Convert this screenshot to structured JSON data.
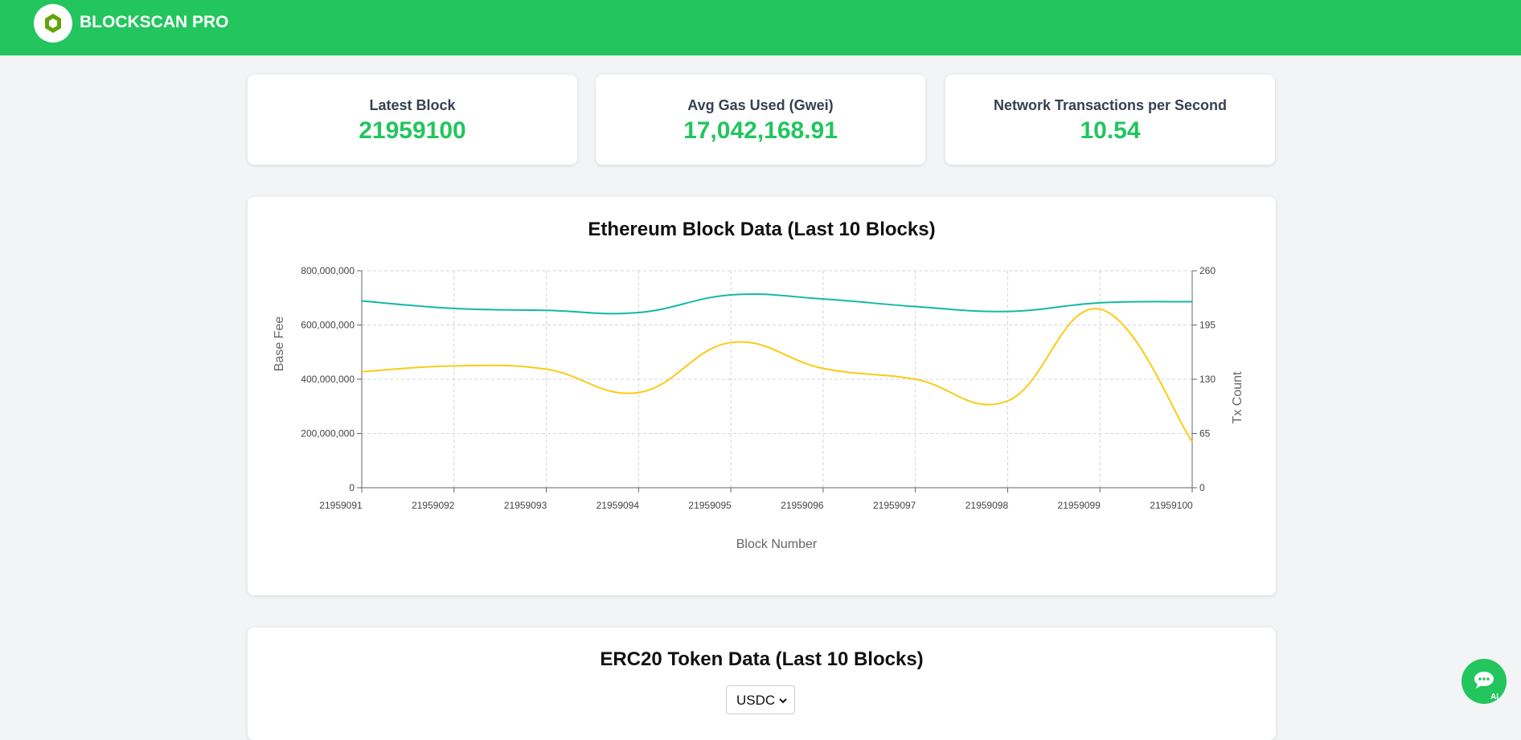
{
  "header": {
    "brand": "BLOCKSCAN PRO"
  },
  "stats": [
    {
      "label": "Latest Block",
      "value": "21959100"
    },
    {
      "label": "Avg Gas Used (Gwei)",
      "value": "17,042,168.91"
    },
    {
      "label": "Network Transactions per Second",
      "value": "10.54"
    }
  ],
  "chart_data": {
    "type": "line",
    "title": "Ethereum Block Data (Last 10 Blocks)",
    "x_label": "Block Number",
    "y_label": "Base Fee",
    "y2_label": "Tx Count",
    "categories": [
      "21959091",
      "21959092",
      "21959093",
      "21959094",
      "21959095",
      "21959096",
      "21959097",
      "21959098",
      "21959099",
      "21959100"
    ],
    "series": [
      {
        "color": "#14b8a6",
        "values": [
          689000000,
          661000000,
          654000000,
          646000000,
          711000000,
          696000000,
          668000000,
          650000000,
          682000000,
          686000000
        ]
      },
      {
        "color": "#facc15",
        "axis": "y2",
        "values": [
          139,
          146,
          142,
          114,
          174,
          143,
          130,
          104,
          214,
          55
        ]
      }
    ],
    "ylim": [
      0,
      800000000
    ],
    "yticks": [
      0,
      {
        "value": 200000000,
        "label": "200,000,000"
      },
      {
        "value": 400000000,
        "label": "400,000,000"
      },
      {
        "value": 600000000,
        "label": "600,000,000"
      },
      {
        "value": 800000000,
        "label": "800,000,000"
      }
    ],
    "y2lim": [
      0,
      260
    ],
    "y2ticks": [
      0,
      65,
      130,
      195,
      260
    ],
    "grid": true
  },
  "token_section": {
    "title": "ERC20 Token Data (Last 10 Blocks)",
    "selected": "USDC"
  }
}
